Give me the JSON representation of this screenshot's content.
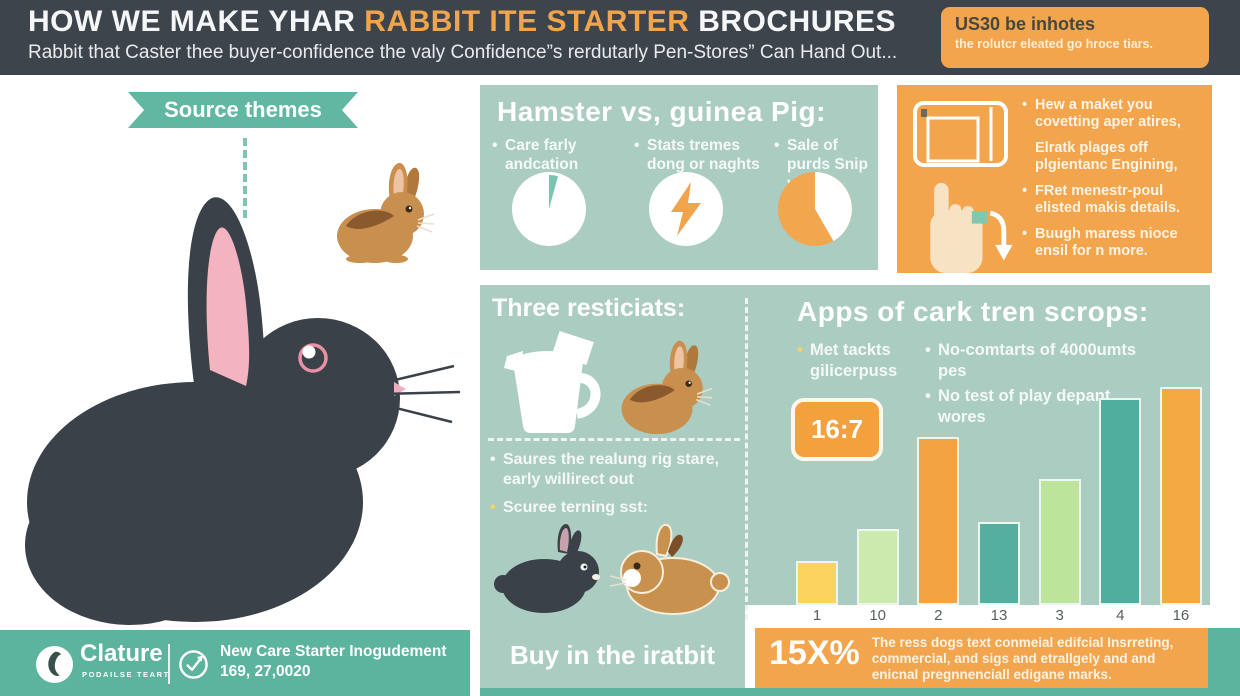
{
  "header": {
    "title_part1": "HOW WE MAKE YHAR ",
    "title_highlight": "RABBIT ITE STARTER",
    "title_part2": " BROCHURES",
    "subtitle": "Rabbit that Caster thee buyer-confidence the valy Confidence”s rerdutarly Pen-Stores” Can Hand Out...",
    "badge": {
      "title": "US30 be inhotes",
      "body": "the rolutcr eleated go hroce tiars."
    }
  },
  "left_panel": {
    "ribbon_label": "Source themes"
  },
  "hamster_section": {
    "heading": "Hamster vs, guinea Pig:",
    "bullets": [
      {
        "bullet": "•",
        "text": "Care farly andcation"
      },
      {
        "bullet": "•",
        "text": "Stats tremes dong or naghts"
      },
      {
        "bullet": "•",
        "text": "Sale of purds Snip viasiy"
      }
    ]
  },
  "tips_box": {
    "items": [
      {
        "bullet": "•",
        "text": "Hew a maket you covetting aper atires,"
      },
      {
        "bullet": "",
        "text": "Elratk plages off plgientanc Engining,"
      },
      {
        "bullet": "•",
        "text": "FRet menestr-poul elisted makis details."
      },
      {
        "bullet": "•",
        "text": "Buugh maress nioce ensil for n more."
      }
    ]
  },
  "three_section": {
    "heading": "Three resticiats:",
    "bullets": [
      {
        "bullet": "•",
        "text": "Saures the realung rig stare, early willirect out"
      },
      {
        "bullet": "•",
        "text": "Scuree terning sst:"
      }
    ],
    "footer_heading": "Buy in the iratbit"
  },
  "apps_section": {
    "heading": "Apps of cark tren scrops:",
    "bullet_left": {
      "bullet": "•",
      "text": "Met tackts gilicerpuss"
    },
    "ratio_badge": "16:7",
    "bullets_right": [
      {
        "bullet": "•",
        "text": "No-comtarts of 4000umts pes"
      },
      {
        "bullet": "•",
        "text": "No test of play depant wores"
      }
    ]
  },
  "chart_data": {
    "type": "bar",
    "categories": [
      "1",
      "10",
      "2",
      "13",
      "3",
      "4",
      "16"
    ],
    "values": [
      20,
      35,
      77,
      38,
      58,
      95,
      100
    ],
    "bar_colors": [
      "#fbd35e",
      "#cdeaae",
      "#f3a440",
      "#55af9f",
      "#bce49a",
      "#4fae9e",
      "#f5a943"
    ],
    "title": "",
    "xlabel": "",
    "ylabel": "",
    "ylim": [
      0,
      100
    ],
    "grid": false,
    "legend": false
  },
  "footer": {
    "brand": "Clature",
    "brand_sub": "PODAILSE TEART",
    "note_line1": "New Care Starter Inogudement",
    "note_line2": "169, 27,0020",
    "promo_stat": "15X%",
    "promo_text": "The ress dogs text conmeial edifcial Insrreting, commercial, and sigs and etrallgely and and enicnal pregnnenciall edigane marks."
  },
  "colors": {
    "header_bg": "#3e444b",
    "accent_orange": "#f3a54d",
    "sage": "#abccc0",
    "teal": "#5cb49e",
    "highlight_text": "#f0a44c"
  }
}
